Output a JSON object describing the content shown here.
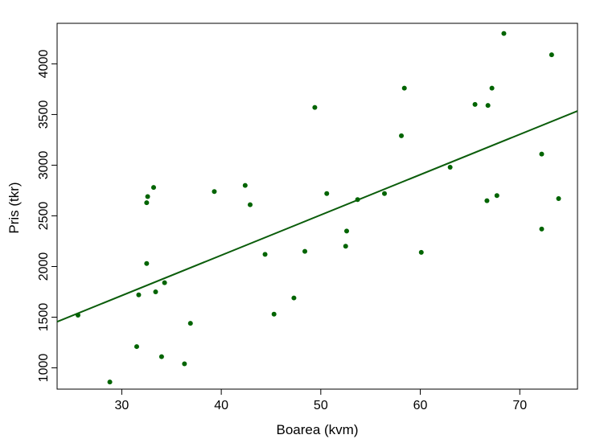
{
  "chart_data": {
    "type": "scatter",
    "xlabel": "Boarea (kvm)",
    "ylabel": "Pris (tkr)",
    "xlim": [
      23.5,
      75.8
    ],
    "ylim": [
      790,
      4400
    ],
    "xticks": [
      30,
      40,
      50,
      60,
      70
    ],
    "yticks": [
      1000,
      1500,
      2000,
      2500,
      3000,
      3500,
      4000
    ],
    "grid": false,
    "color": "#006400",
    "points": [
      {
        "x": 25.6,
        "y": 1520
      },
      {
        "x": 28.8,
        "y": 860
      },
      {
        "x": 31.5,
        "y": 1210
      },
      {
        "x": 31.7,
        "y": 1720
      },
      {
        "x": 32.5,
        "y": 2030
      },
      {
        "x": 32.5,
        "y": 2630
      },
      {
        "x": 32.6,
        "y": 2690
      },
      {
        "x": 33.2,
        "y": 2780
      },
      {
        "x": 33.4,
        "y": 1750
      },
      {
        "x": 34.0,
        "y": 1110
      },
      {
        "x": 34.3,
        "y": 1840
      },
      {
        "x": 36.3,
        "y": 1040
      },
      {
        "x": 36.9,
        "y": 1440
      },
      {
        "x": 39.3,
        "y": 2740
      },
      {
        "x": 42.4,
        "y": 2800
      },
      {
        "x": 42.9,
        "y": 2610
      },
      {
        "x": 44.4,
        "y": 2120
      },
      {
        "x": 45.3,
        "y": 1530
      },
      {
        "x": 47.3,
        "y": 1690
      },
      {
        "x": 48.4,
        "y": 2150
      },
      {
        "x": 49.4,
        "y": 3570
      },
      {
        "x": 50.6,
        "y": 2720
      },
      {
        "x": 52.5,
        "y": 2200
      },
      {
        "x": 52.6,
        "y": 2350
      },
      {
        "x": 53.7,
        "y": 2660
      },
      {
        "x": 56.4,
        "y": 2720
      },
      {
        "x": 58.1,
        "y": 3290
      },
      {
        "x": 58.4,
        "y": 3760
      },
      {
        "x": 60.1,
        "y": 2140
      },
      {
        "x": 63.0,
        "y": 2980
      },
      {
        "x": 65.5,
        "y": 3600
      },
      {
        "x": 66.7,
        "y": 2650
      },
      {
        "x": 66.8,
        "y": 3590
      },
      {
        "x": 67.2,
        "y": 3760
      },
      {
        "x": 67.7,
        "y": 2700
      },
      {
        "x": 68.4,
        "y": 4300
      },
      {
        "x": 72.2,
        "y": 3110
      },
      {
        "x": 72.2,
        "y": 2370
      },
      {
        "x": 73.2,
        "y": 4090
      },
      {
        "x": 73.9,
        "y": 2670
      }
    ],
    "regression_line": {
      "color": "#0b5d0b",
      "start": {
        "x": 23.5,
        "y": 1455
      },
      "end": {
        "x": 75.8,
        "y": 3535
      }
    }
  }
}
